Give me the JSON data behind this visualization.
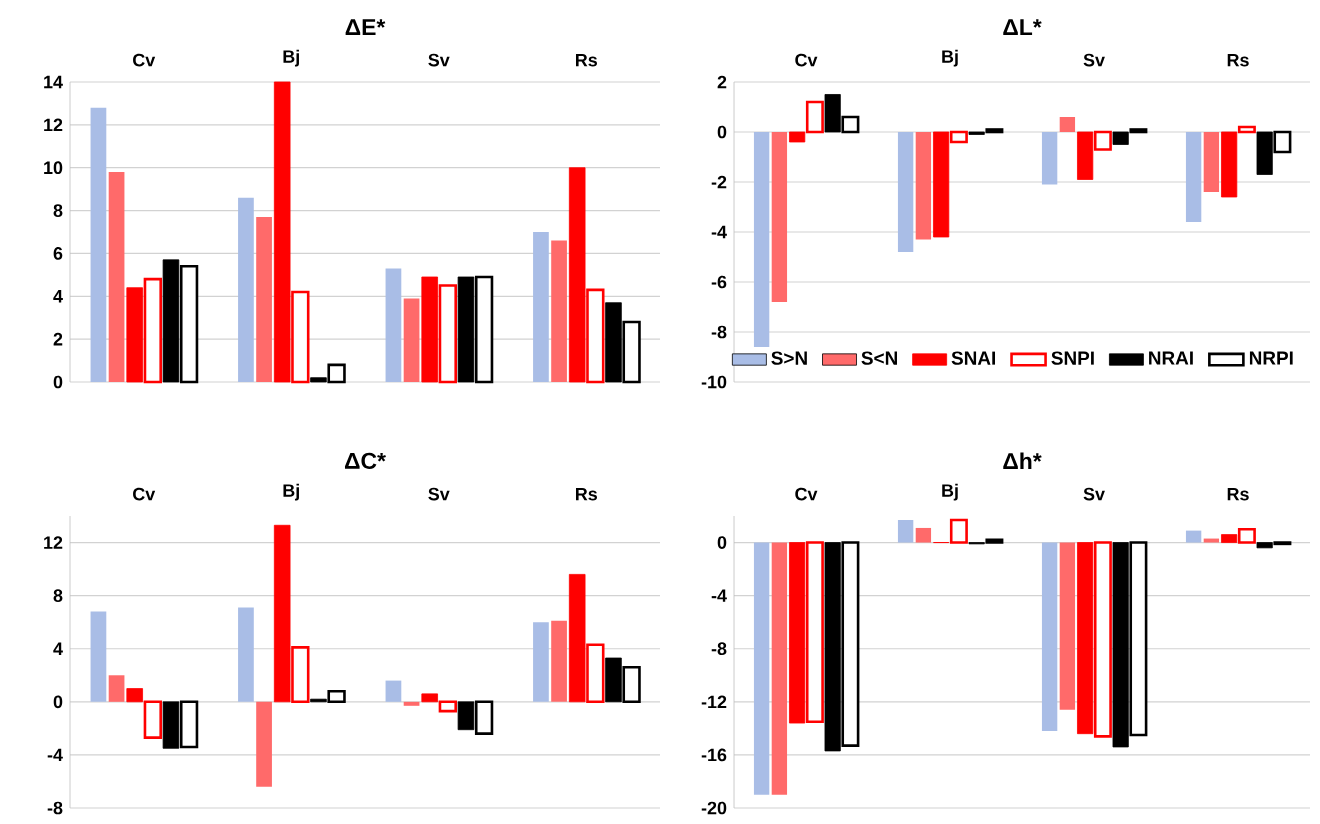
{
  "chart_data": [
    {
      "type": "bar",
      "title": "ΔE*",
      "categories": [
        "Cv",
        "Bj",
        "Sv",
        "Rs"
      ],
      "ylim": [
        0,
        14
      ],
      "yticks": [
        0,
        2,
        4,
        6,
        8,
        10,
        12,
        14
      ],
      "grid": "y",
      "series": [
        {
          "color": "#a9bde6",
          "values": [
            12.8,
            8.6,
            5.3,
            7.0
          ]
        },
        {
          "color": "#ff6a6a",
          "values": [
            9.8,
            7.7,
            3.9,
            6.6
          ]
        },
        {
          "color": "#ff0000",
          "values": [
            4.4,
            14.0,
            4.9,
            10.0
          ]
        },
        {
          "color": "#ff0000",
          "values": [
            4.8,
            4.2,
            4.5,
            4.3
          ]
        },
        {
          "color": "#000000",
          "values": [
            5.7,
            0.2,
            4.9,
            3.7
          ]
        },
        {
          "color": "#000000",
          "values": [
            5.4,
            0.8,
            4.9,
            2.8
          ]
        }
      ]
    },
    {
      "type": "bar",
      "title": "ΔL*",
      "categories": [
        "Cv",
        "Bj",
        "Sv",
        "Rs"
      ],
      "ylim": [
        -10,
        2
      ],
      "yticks": [
        -10,
        -8,
        -6,
        -4,
        -2,
        0,
        2
      ],
      "grid": "y",
      "legend": "bottom right",
      "series": [
        {
          "name": "S>N",
          "color": "#a9bde6",
          "values": [
            -8.6,
            -4.8,
            -2.1,
            -3.6
          ]
        },
        {
          "name": "S<N",
          "color": "#ff6a6a",
          "values": [
            -6.8,
            -4.3,
            0.6,
            -2.4
          ]
        },
        {
          "name": "SNAI",
          "color": "#ff0000",
          "values": [
            -0.4,
            -4.2,
            -1.9,
            -2.6
          ]
        },
        {
          "name": "SNPI",
          "color": "#ff0000",
          "values": [
            1.2,
            -0.4,
            -0.7,
            0.2
          ]
        },
        {
          "name": "NRAI",
          "color": "#000000",
          "values": [
            1.5,
            -0.1,
            -0.5,
            -1.7
          ]
        },
        {
          "name": "NRPI",
          "color": "#000000",
          "values": [
            0.6,
            0.1,
            0.1,
            -0.8
          ]
        }
      ]
    },
    {
      "type": "bar",
      "title": "ΔC*",
      "categories": [
        "Cv",
        "Bj",
        "Sv",
        "Rs"
      ],
      "ylim": [
        -8,
        14
      ],
      "yticks": [
        -8,
        -4,
        0,
        4,
        8,
        12
      ],
      "grid": "y",
      "series": [
        {
          "color": "#a9bde6",
          "values": [
            6.8,
            7.1,
            1.6,
            6.0
          ]
        },
        {
          "color": "#ff6a6a",
          "values": [
            2.0,
            -6.4,
            -0.3,
            6.1
          ]
        },
        {
          "color": "#ff0000",
          "values": [
            1.0,
            13.3,
            0.6,
            9.6
          ]
        },
        {
          "color": "#ff0000",
          "values": [
            -2.7,
            4.1,
            -0.7,
            4.3
          ]
        },
        {
          "color": "#000000",
          "values": [
            -3.5,
            0.2,
            -2.1,
            3.3
          ]
        },
        {
          "color": "#000000",
          "values": [
            -3.4,
            0.8,
            -2.4,
            2.6
          ]
        }
      ]
    },
    {
      "type": "bar",
      "title": "Δh*",
      "categories": [
        "Cv",
        "Bj",
        "Sv",
        "Rs"
      ],
      "ylim": [
        -20,
        2
      ],
      "yticks": [
        -20,
        -16,
        -12,
        -8,
        -4,
        0
      ],
      "grid": "y",
      "series": [
        {
          "color": "#a9bde6",
          "values": [
            -19.0,
            1.7,
            -14.2,
            0.9
          ]
        },
        {
          "color": "#ff6a6a",
          "values": [
            -19.0,
            1.1,
            -12.6,
            0.3
          ]
        },
        {
          "color": "#ff0000",
          "values": [
            -13.6,
            0.0,
            -14.4,
            0.6
          ]
        },
        {
          "color": "#ff0000",
          "values": [
            -13.5,
            1.7,
            -14.6,
            1.0
          ]
        },
        {
          "color": "#000000",
          "values": [
            -15.7,
            -0.1,
            -15.4,
            -0.4
          ]
        },
        {
          "color": "#000000",
          "values": [
            -15.3,
            0.2,
            -14.5,
            -0.1
          ]
        }
      ]
    }
  ]
}
